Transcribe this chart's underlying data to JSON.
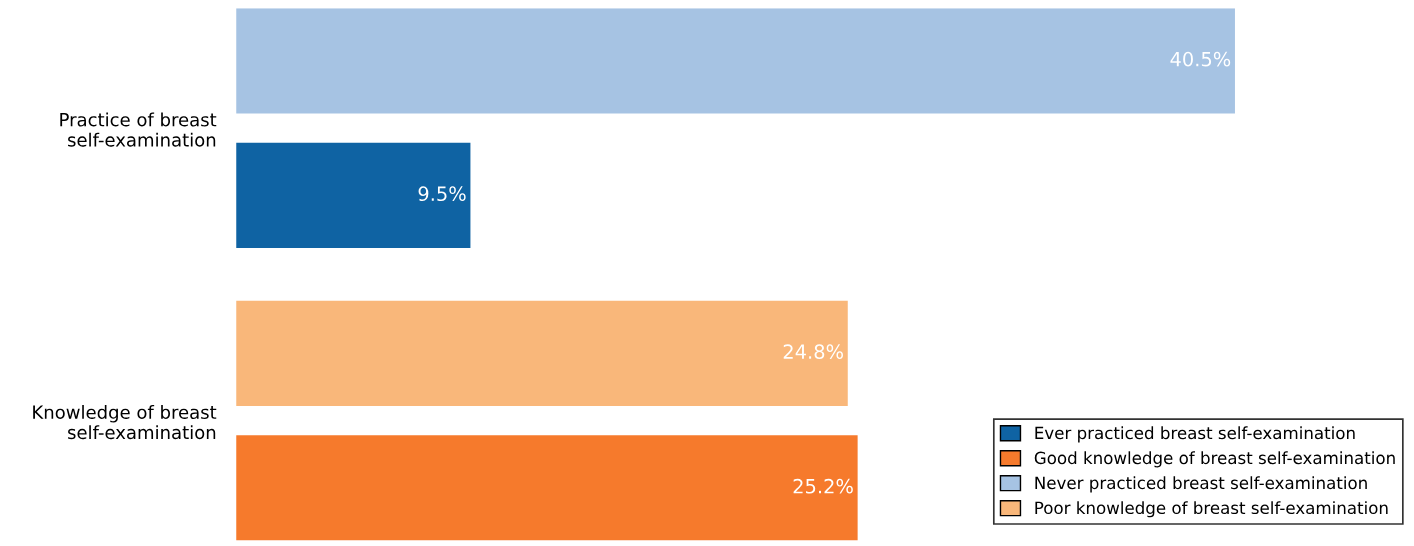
{
  "chart_data": {
    "type": "bar",
    "orientation": "horizontal",
    "categories": [
      "Practice of breast\nself-examination",
      "Knowledge of breast\nself-examination"
    ],
    "series": [
      {
        "name": "Ever practiced breast self-examination",
        "color": "#0f63a3",
        "values": [
          9.5,
          null
        ],
        "value_labels": [
          "9.5%",
          null
        ]
      },
      {
        "name": "Good knowledge of breast self-examination",
        "color": "#f67a2c",
        "values": [
          null,
          25.2
        ],
        "value_labels": [
          null,
          "25.2%"
        ]
      },
      {
        "name": "Never practiced breast self-examination",
        "color": "#a6c3e3",
        "values": [
          40.5,
          null
        ],
        "value_labels": [
          "40.5%",
          null
        ]
      },
      {
        "name": "Poor knowledge of breast self-examination",
        "color": "#f9b77a",
        "values": [
          null,
          24.8
        ],
        "value_labels": [
          null,
          "24.8%"
        ]
      }
    ],
    "tick_labels": "y",
    "grid": false,
    "legend": "bottom right"
  }
}
